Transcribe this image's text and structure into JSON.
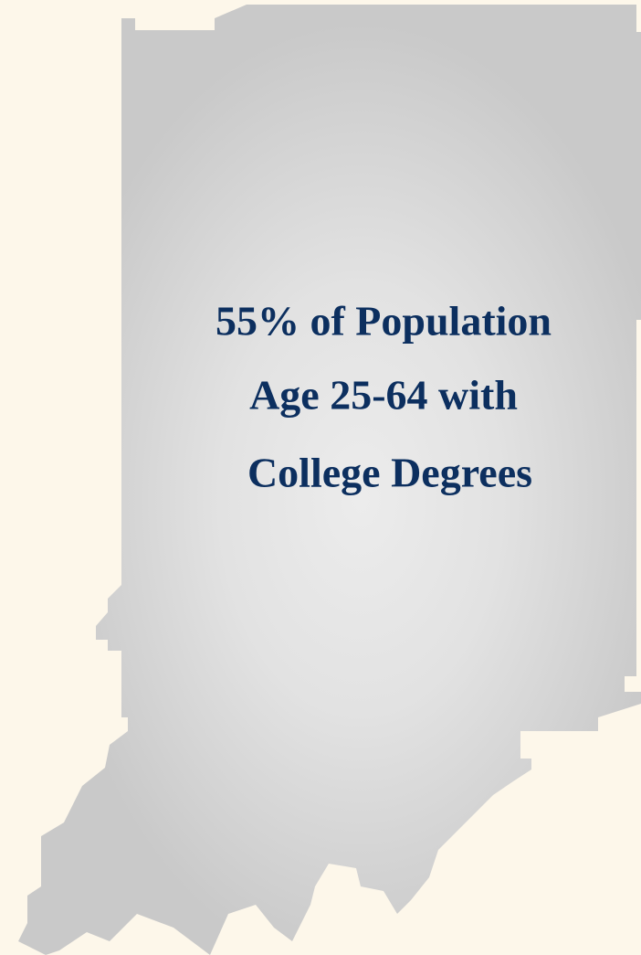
{
  "text": {
    "lines": [
      "55% of Population",
      "Age 25-64 with",
      "College Degrees"
    ]
  }
}
